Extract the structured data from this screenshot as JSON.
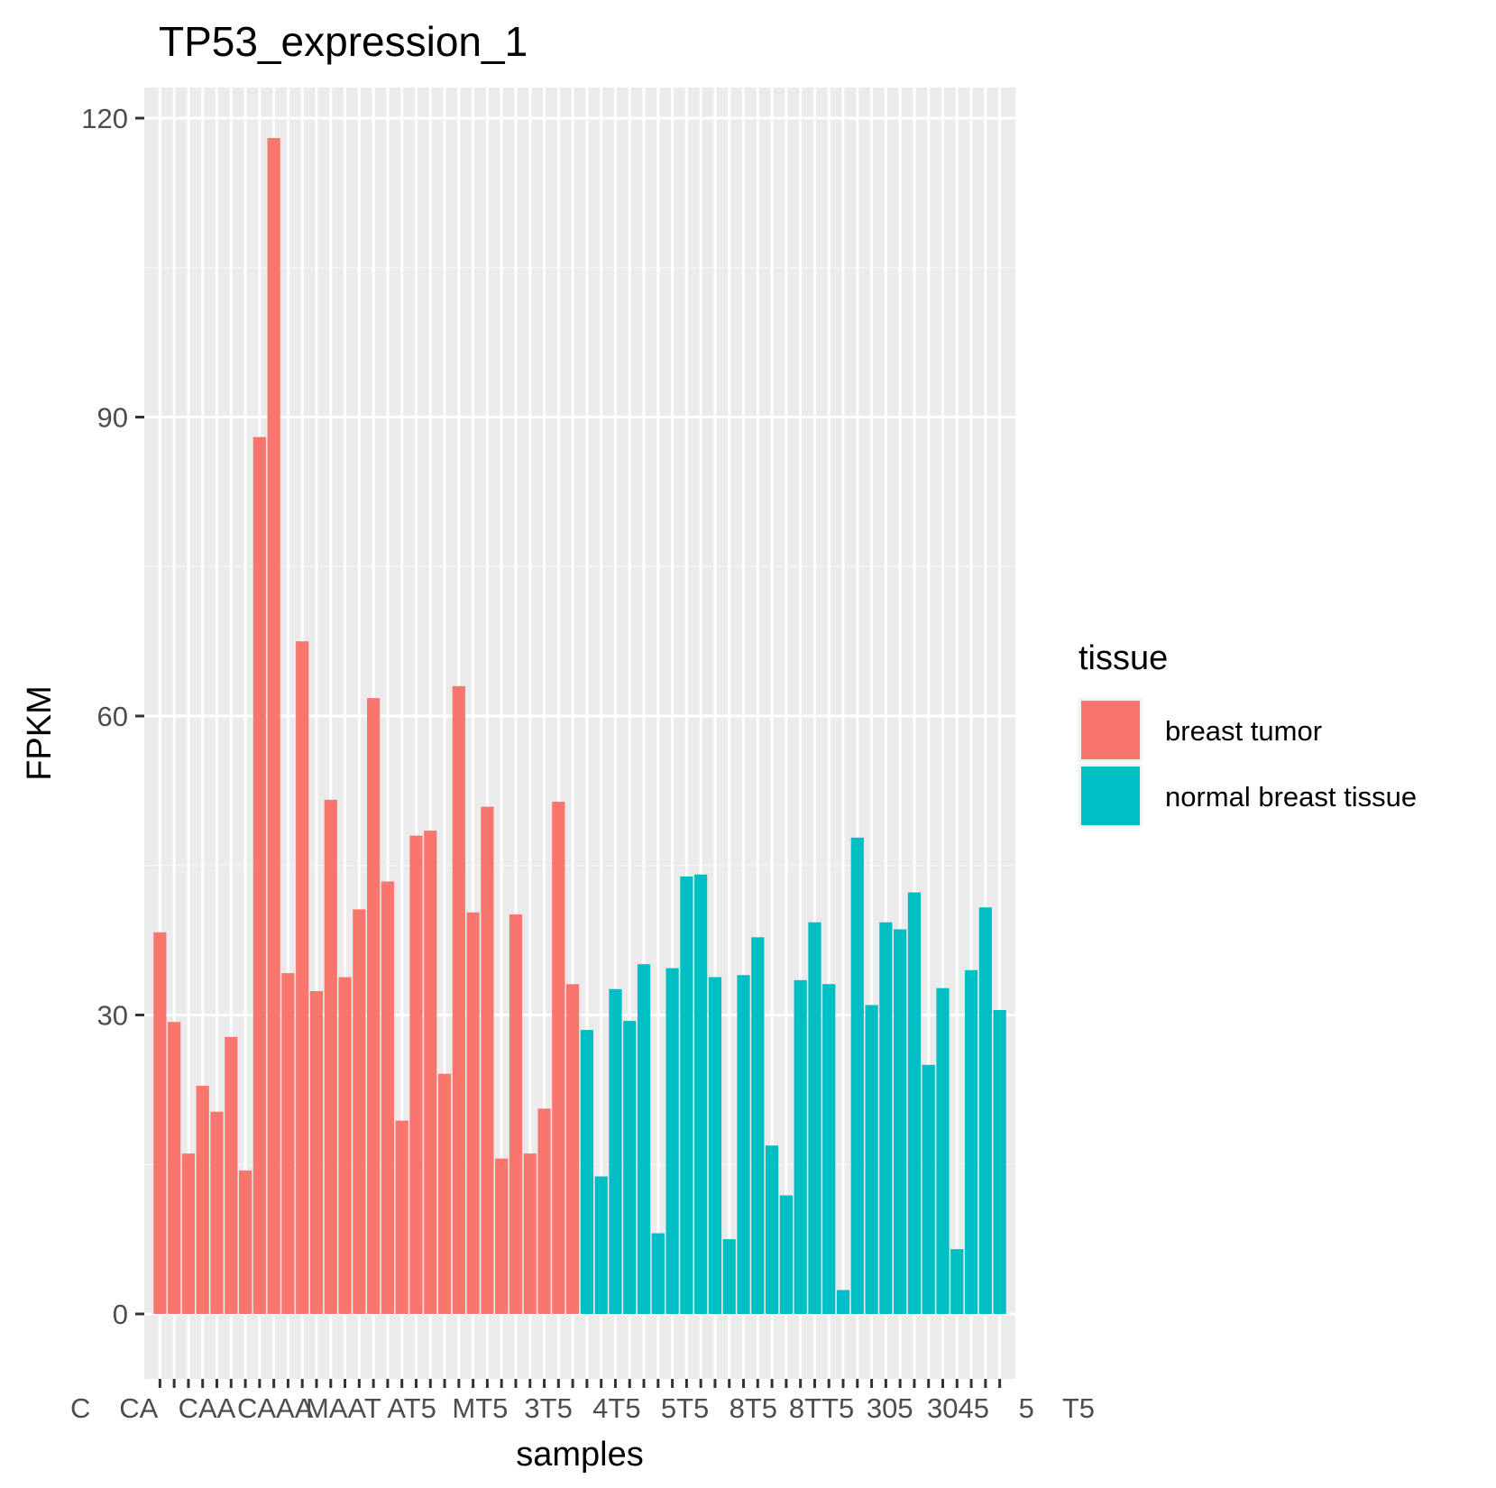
{
  "chart_data": {
    "type": "bar",
    "title": "TP53_expression_1",
    "xlabel": "samples",
    "ylabel": "FPKM",
    "ylim": [
      -6,
      124
    ],
    "yticks": [
      0,
      30,
      60,
      90,
      120
    ],
    "grid": true,
    "legend": {
      "title": "tissue",
      "placement": "right",
      "entries": [
        {
          "label": "breast tumor",
          "color": "#F8766D"
        },
        {
          "label": "normal breast tissue",
          "color": "#00BFC4"
        }
      ]
    },
    "series": [
      {
        "name": "breast tumor",
        "color": "#F8766D",
        "values": [
          38.3,
          29.3,
          16.1,
          22.9,
          20.3,
          27.8,
          14.4,
          88.0,
          118.0,
          34.2,
          67.5,
          32.4,
          51.6,
          33.8,
          40.6,
          61.8,
          43.4,
          19.4,
          48.0,
          48.5,
          24.1,
          63.0,
          40.3,
          50.9,
          15.6,
          40.1,
          16.1,
          20.6,
          51.4,
          33.1
        ]
      },
      {
        "name": "normal breast tissue",
        "color": "#00BFC4",
        "values": [
          28.5,
          13.8,
          32.6,
          29.4,
          35.1,
          8.1,
          34.7,
          43.9,
          44.1,
          33.8,
          7.5,
          34.0,
          37.8,
          16.9,
          11.9,
          33.5,
          39.3,
          33.1,
          2.4,
          47.8,
          31.0,
          39.3,
          38.6,
          42.3,
          25.0,
          32.7,
          6.5,
          34.5,
          40.8,
          30.5
        ]
      }
    ],
    "x_tick_labels_visible": [
      "C",
      "CA",
      "CAA",
      "CAAA",
      "MAAT",
      "AT5",
      "MT5",
      "3T5",
      "4T5",
      "5T5",
      "8T5",
      "8TT5",
      "305",
      "3045",
      "5",
      "T5"
    ]
  }
}
